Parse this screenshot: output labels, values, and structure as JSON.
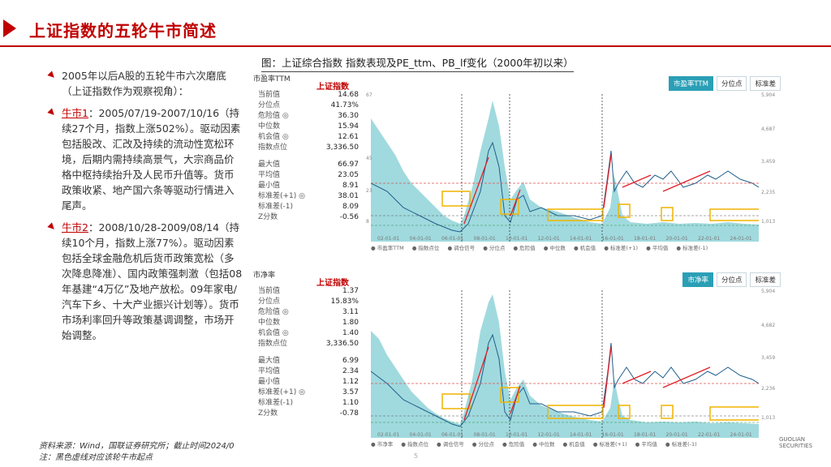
{
  "header": {
    "title": "上证指数的五轮牛市简述"
  },
  "left": {
    "intro": "2005年以后A股的五轮牛市六次磨底（上证指数作为观察视角）：",
    "bull1_label": "牛市1",
    "bull1_text": "：2005/07/19-2007/10/16（持续27个月，指数上涨502%）。驱动因素包括股改、汇改及持续的流动性宽松环境，后期内需持续高景气，大宗商品价格中枢持续抬升及人民币升值等。货币政策收紧、地产国六条等驱动行情进入尾声。",
    "bull2_label": "牛市2",
    "bull2_text": "：2008/10/28-2009/08/14（持续10个月，指数上涨77%）。驱动因素包括全球金融危机后货币政策宽松（多次降息降准）、国内政策强刺激（包括08年基建“4万亿”及地产放松。09年家电/汽车下乡、十大产业振兴计划等）。货币市场利率回升等政策基调调整，市场开始调整。"
  },
  "figure": {
    "caption": "图：上证综合指数 指数表现及PE_ttm、PB_lf变化（2000年初以来）"
  },
  "panel1": {
    "title": "市盈率TTM",
    "index_label": "上证指数",
    "buttons": [
      "市盈率TTM",
      "分位点",
      "标准差"
    ],
    "stats_a": [
      [
        "当前值",
        "14.68"
      ],
      [
        "分位点",
        "41.73%"
      ],
      [
        "危险值 ◎",
        "36.30"
      ],
      [
        "中位数",
        "15.94"
      ],
      [
        "机会值 ◎",
        "12.61"
      ],
      [
        "指数点位",
        "3,336.50"
      ]
    ],
    "stats_b": [
      [
        "最大值",
        "66.97"
      ],
      [
        "平均值",
        "23.05"
      ],
      [
        "最小值",
        "8.91"
      ],
      [
        "标准差(+1) ◎",
        "38.01"
      ],
      [
        "标准差(-1)",
        "8.09"
      ],
      [
        "Z分数",
        "-0.56"
      ]
    ],
    "y_left": [
      "67",
      "45",
      "23",
      "8"
    ],
    "y_right": [
      "5,904",
      "4,687",
      "3,459",
      "2,235",
      "1,013"
    ]
  },
  "panel2": {
    "title": "市净率",
    "index_label": "上证指数",
    "buttons": [
      "市净率",
      "分位点",
      "标准差"
    ],
    "stats_a": [
      [
        "当前值",
        "1.37"
      ],
      [
        "分位点",
        "15.83%"
      ],
      [
        "危险值 ◎",
        "3.11"
      ],
      [
        "中位数",
        "1.80"
      ],
      [
        "机会值 ◎",
        "1.40"
      ],
      [
        "指数点位",
        "3,336.50"
      ]
    ],
    "stats_b": [
      [
        "最大值",
        "6.99"
      ],
      [
        "平均值",
        "2.34"
      ],
      [
        "最小值",
        "1.12"
      ],
      [
        "标准差(+1) ◎",
        "3.57"
      ],
      [
        "标准差(-1)",
        "1.10"
      ],
      [
        "Z分数",
        "-0.78"
      ]
    ],
    "y_right": [
      "5,904",
      "4,682",
      "3,459",
      "2,236",
      "1,013"
    ]
  },
  "xticks": [
    "02-01-01",
    "04-01-01",
    "06-01-01",
    "08-01-01",
    "10-01-01",
    "12-01-01",
    "14-01-01",
    "16-01-01",
    "18-01-01",
    "20-01-01",
    "22-01-01",
    "24-01-01"
  ],
  "legend": [
    "市盈率TTM",
    "指数点位",
    "调仓信号",
    "分位点",
    "危险值",
    "中位数",
    "机会值",
    "标准差(+1)",
    "平均值",
    "标准差(-1)"
  ],
  "legend2": [
    "市净率",
    "指数点位",
    "调仓信号",
    "分位点",
    "危险值",
    "中位数",
    "机会值",
    "标准差(+1)",
    "平均值",
    "标准差(-1)"
  ],
  "footer": {
    "source": "资料来源：Wind，国联证券研究所；截止时间2024/0",
    "note": "注：黑色虚线对应该轮牛市起点"
  },
  "logo": "GUOLIAN SECURITIES",
  "page": "5",
  "colors": {
    "accent": "#c00000",
    "area": "#7ecfd6",
    "index": "#1f5e8c",
    "arrow": "#e0202a",
    "box": "#f0b400"
  }
}
